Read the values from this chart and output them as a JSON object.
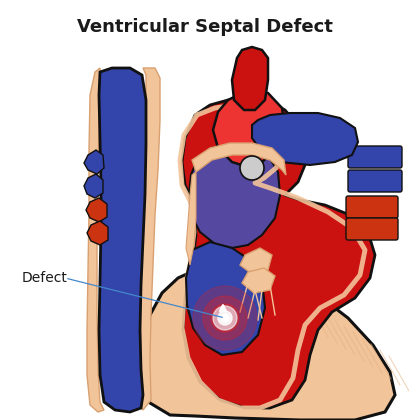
{
  "title": "Ventricular Septal Defect",
  "title_fontsize": 13,
  "title_fontweight": "bold",
  "title_color": "#1a1a1a",
  "background_color": "#ffffff",
  "label_text": "Defect",
  "label_fontsize": 10,
  "colors": {
    "red_dark": "#cc1111",
    "red_medium": "#dd2020",
    "red_bright": "#ee3333",
    "blue_dark": "#3344aa",
    "blue_medium": "#4a55bb",
    "blue_purple": "#5548a0",
    "skin": "#f2c49a",
    "skin_outline": "#d9a070",
    "outline": "#111111",
    "orange_red": "#cc3311",
    "white_glow": "#ffffff",
    "pink_glow": "#ff6666",
    "gray_white": "#cccccc"
  }
}
